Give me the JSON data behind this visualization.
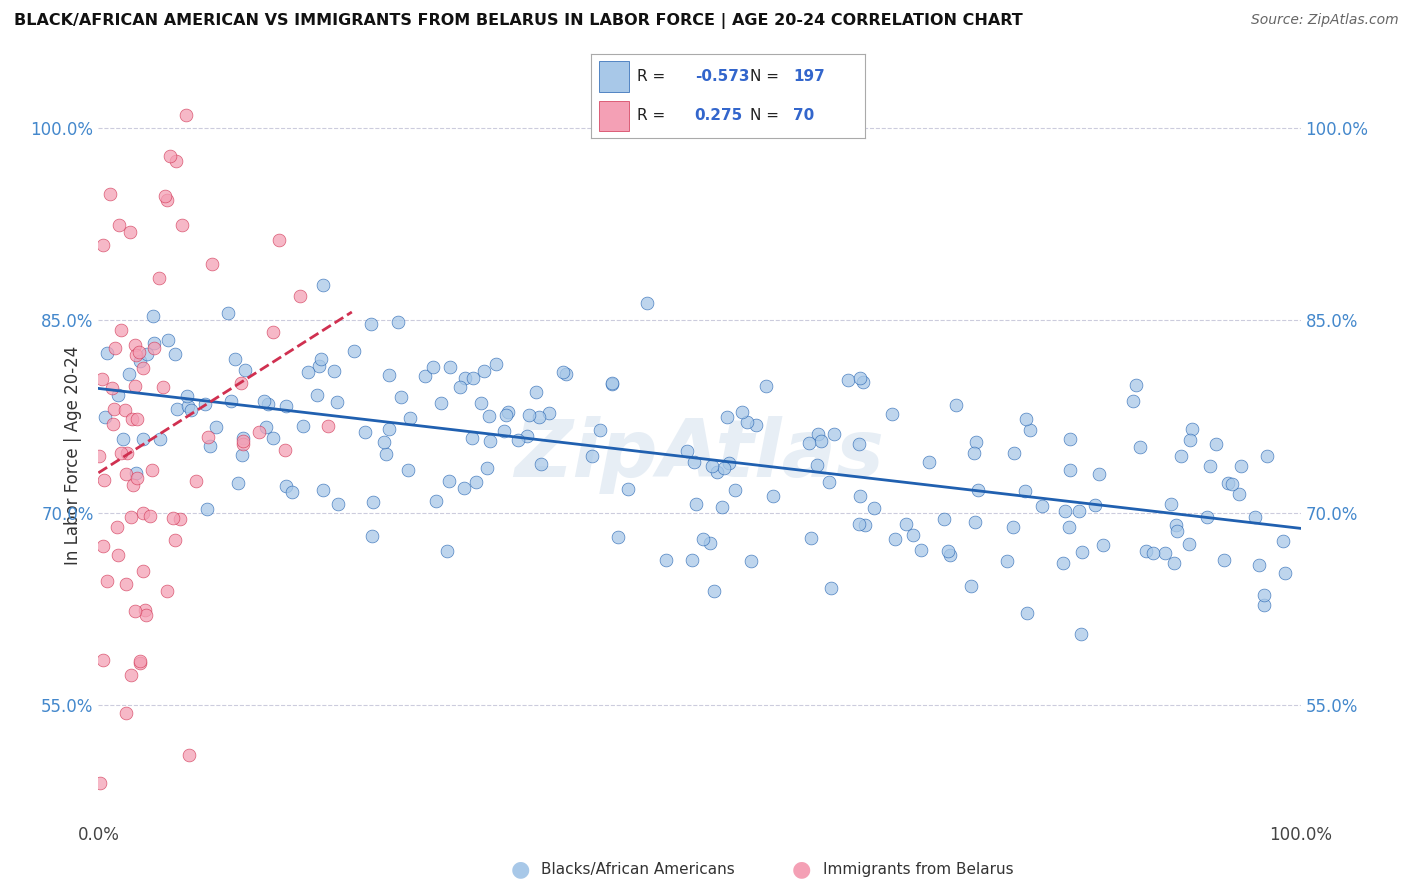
{
  "title": "BLACK/AFRICAN AMERICAN VS IMMIGRANTS FROM BELARUS IN LABOR FORCE | AGE 20-24 CORRELATION CHART",
  "source": "Source: ZipAtlas.com",
  "ylabel": "In Labor Force | Age 20-24",
  "xlim": [
    0.0,
    1.0
  ],
  "ylim": [
    0.46,
    1.03
  ],
  "yticks": [
    0.55,
    0.7,
    0.85,
    1.0
  ],
  "ytick_labels": [
    "55.0%",
    "70.0%",
    "85.0%",
    "100.0%"
  ],
  "xticks": [
    0.0,
    1.0
  ],
  "xtick_labels": [
    "0.0%",
    "100.0%"
  ],
  "legend_labels": [
    "Blacks/African Americans",
    "Immigrants from Belarus"
  ],
  "blue_R": "-0.573",
  "blue_N": 197,
  "pink_R": "0.275",
  "pink_N": 70,
  "blue_color": "#a8c8e8",
  "pink_color": "#f4a0b5",
  "blue_line_color": "#2060b0",
  "pink_line_color": "#d03050",
  "watermark": "ZipAtlas",
  "background_color": "#ffffff",
  "grid_color": "#ccccdd",
  "blue_seed": 42,
  "pink_seed": 7
}
